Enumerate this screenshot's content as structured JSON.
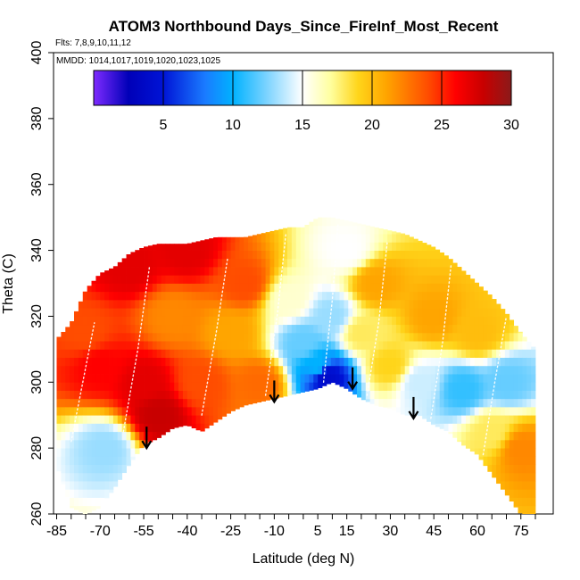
{
  "chart_data": {
    "type": "heatmap",
    "title": "ATOM3 Northbound Days_Since_FireInf_Most_Recent",
    "subtitle_flights": "Flts: 7,8,9,10,11,12",
    "subtitle_dates": "MMDD: 1014,1017,1019,1020,1023,1025",
    "xlabel": "Latitude (deg N)",
    "ylabel": "Theta (C)",
    "xlim": [
      -85,
      80
    ],
    "ylim": [
      260,
      400
    ],
    "x_ticks": [
      -85,
      -70,
      -55,
      -40,
      -25,
      -10,
      5,
      15,
      30,
      45,
      60,
      75
    ],
    "x_tick_labels": [
      "-85",
      "-70",
      "-55",
      "-40",
      "-25",
      "-10",
      "5",
      "15",
      "30",
      "45",
      "60",
      "75"
    ],
    "x_minor_step": 5,
    "y_ticks": [
      260,
      280,
      300,
      320,
      340,
      360,
      380,
      400
    ],
    "y_tick_labels": [
      "260",
      "280",
      "300",
      "320",
      "340",
      "360",
      "380",
      "400"
    ],
    "colorbar": {
      "range": [
        0,
        30
      ],
      "ticks": [
        5,
        10,
        15,
        20,
        25,
        30
      ],
      "tick_labels": [
        "5",
        "10",
        "15",
        "20",
        "25",
        "30"
      ],
      "color_stops": [
        {
          "value": 0,
          "color": "#7f2bff"
        },
        {
          "value": 2.5,
          "color": "#0000b8"
        },
        {
          "value": 5,
          "color": "#0014d6"
        },
        {
          "value": 8,
          "color": "#1a7bff"
        },
        {
          "value": 10,
          "color": "#00b2ff"
        },
        {
          "value": 12.5,
          "color": "#7fd4ff"
        },
        {
          "value": 15,
          "color": "#ffffff"
        },
        {
          "value": 17,
          "color": "#ffffa0"
        },
        {
          "value": 19,
          "color": "#ffd51a"
        },
        {
          "value": 21,
          "color": "#ffa500"
        },
        {
          "value": 24,
          "color": "#ff4d00"
        },
        {
          "value": 26,
          "color": "#ff0000"
        },
        {
          "value": 28,
          "color": "#c80000"
        },
        {
          "value": 30,
          "color": "#8b1a1a"
        }
      ]
    },
    "coverage_top": [
      [
        -85,
        313
      ],
      [
        -80,
        318
      ],
      [
        -75,
        328
      ],
      [
        -70,
        333
      ],
      [
        -65,
        335
      ],
      [
        -60,
        339
      ],
      [
        -55,
        341
      ],
      [
        -50,
        342
      ],
      [
        -45,
        342
      ],
      [
        -40,
        342
      ],
      [
        -35,
        343
      ],
      [
        -30,
        344
      ],
      [
        -25,
        344
      ],
      [
        -20,
        344
      ],
      [
        -15,
        345
      ],
      [
        -10,
        346
      ],
      [
        -5,
        347
      ],
      [
        0,
        347
      ],
      [
        5,
        350
      ],
      [
        10,
        350
      ],
      [
        15,
        349
      ],
      [
        20,
        348
      ],
      [
        25,
        347
      ],
      [
        30,
        346
      ],
      [
        35,
        345
      ],
      [
        40,
        343
      ],
      [
        45,
        341
      ],
      [
        50,
        338
      ],
      [
        55,
        334
      ],
      [
        60,
        330
      ],
      [
        65,
        326
      ],
      [
        70,
        321
      ],
      [
        75,
        315
      ],
      [
        80,
        310
      ]
    ],
    "coverage_bottom": [
      [
        -85,
        275
      ],
      [
        -80,
        262
      ],
      [
        -75,
        260
      ],
      [
        -70,
        262
      ],
      [
        -65,
        268
      ],
      [
        -60,
        275
      ],
      [
        -55,
        281
      ],
      [
        -50,
        283
      ],
      [
        -45,
        286
      ],
      [
        -40,
        287
      ],
      [
        -35,
        285
      ],
      [
        -30,
        288
      ],
      [
        -25,
        291
      ],
      [
        -20,
        293
      ],
      [
        -15,
        294
      ],
      [
        -10,
        295
      ],
      [
        -5,
        296
      ],
      [
        0,
        297
      ],
      [
        5,
        298
      ],
      [
        10,
        300
      ],
      [
        15,
        298
      ],
      [
        20,
        295
      ],
      [
        25,
        293
      ],
      [
        30,
        292
      ],
      [
        35,
        290
      ],
      [
        40,
        290
      ],
      [
        45,
        287
      ],
      [
        50,
        285
      ],
      [
        55,
        281
      ],
      [
        60,
        278
      ],
      [
        65,
        272
      ],
      [
        70,
        266
      ],
      [
        75,
        260
      ],
      [
        80,
        260
      ]
    ],
    "value_field": [
      {
        "lat": -75,
        "theta": 315,
        "days": 24
      },
      {
        "lat": -70,
        "theta": 305,
        "days": 26
      },
      {
        "lat": -68,
        "theta": 280,
        "days": 13
      },
      {
        "lat": -60,
        "theta": 335,
        "days": 27
      },
      {
        "lat": -55,
        "theta": 300,
        "days": 27
      },
      {
        "lat": -50,
        "theta": 290,
        "days": 28
      },
      {
        "lat": -45,
        "theta": 320,
        "days": 22
      },
      {
        "lat": -40,
        "theta": 340,
        "days": 27
      },
      {
        "lat": -35,
        "theta": 300,
        "days": 24
      },
      {
        "lat": -25,
        "theta": 315,
        "days": 21
      },
      {
        "lat": -20,
        "theta": 330,
        "days": 24
      },
      {
        "lat": -15,
        "theta": 300,
        "days": 23
      },
      {
        "lat": -5,
        "theta": 325,
        "days": 16
      },
      {
        "lat": 0,
        "theta": 312,
        "days": 12
      },
      {
        "lat": 5,
        "theta": 305,
        "days": 10
      },
      {
        "lat": 8,
        "theta": 302,
        "days": 4
      },
      {
        "lat": 10,
        "theta": 320,
        "days": 13
      },
      {
        "lat": 15,
        "theta": 340,
        "days": 15
      },
      {
        "lat": 20,
        "theta": 315,
        "days": 18
      },
      {
        "lat": 25,
        "theta": 330,
        "days": 21
      },
      {
        "lat": 30,
        "theta": 305,
        "days": 19
      },
      {
        "lat": 40,
        "theta": 300,
        "days": 14
      },
      {
        "lat": 45,
        "theta": 320,
        "days": 21
      },
      {
        "lat": 55,
        "theta": 298,
        "days": 11
      },
      {
        "lat": 60,
        "theta": 315,
        "days": 20
      },
      {
        "lat": 65,
        "theta": 285,
        "days": 18
      },
      {
        "lat": 70,
        "theta": 300,
        "days": 12
      },
      {
        "lat": 75,
        "theta": 280,
        "days": 22
      }
    ],
    "tropopause_arrows": [
      {
        "lat": -54,
        "theta": 280
      },
      {
        "lat": -10,
        "theta": 294
      },
      {
        "lat": 17,
        "theta": 298
      },
      {
        "lat": 38,
        "theta": 289
      }
    ],
    "flight_tracks": [
      [
        [
          -80,
          282
        ],
        [
          -76,
          300
        ],
        [
          -72,
          318
        ]
      ],
      [
        [
          -62,
          285
        ],
        [
          -57,
          310
        ],
        [
          -53,
          335
        ]
      ],
      [
        [
          -35,
          290
        ],
        [
          -30,
          315
        ],
        [
          -26,
          338
        ]
      ],
      [
        [
          -13,
          296
        ],
        [
          -9,
          320
        ],
        [
          -6,
          345
        ]
      ],
      [
        [
          7,
          300
        ],
        [
          10,
          325
        ],
        [
          12,
          348
        ]
      ],
      [
        [
          22,
          296
        ],
        [
          26,
          318
        ],
        [
          29,
          343
        ]
      ],
      [
        [
          44,
          289
        ],
        [
          48,
          312
        ],
        [
          51,
          336
        ]
      ],
      [
        [
          62,
          278
        ],
        [
          66,
          300
        ],
        [
          70,
          320
        ]
      ]
    ]
  }
}
